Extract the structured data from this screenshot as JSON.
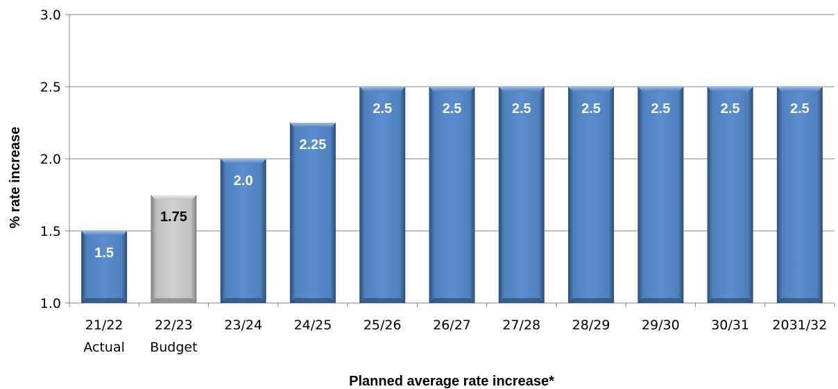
{
  "chart_data": {
    "type": "bar",
    "title": "",
    "xlabel": "Planned average rate increase*",
    "ylabel": "% rate increase",
    "ylim": [
      1.0,
      3.0
    ],
    "yticks": [
      "1.0",
      "1.5",
      "2.0",
      "2.5",
      "3.0"
    ],
    "grid": true,
    "categories": [
      [
        "21/22",
        "Actual"
      ],
      [
        "22/23",
        "Budget"
      ],
      [
        "23/24"
      ],
      [
        "24/25"
      ],
      [
        "25/26"
      ],
      [
        "26/27"
      ],
      [
        "27/28"
      ],
      [
        "28/29"
      ],
      [
        "29/30"
      ],
      [
        "30/31"
      ],
      [
        "2031/32"
      ]
    ],
    "values": [
      1.5,
      1.75,
      2.0,
      2.25,
      2.5,
      2.5,
      2.5,
      2.5,
      2.5,
      2.5,
      2.5
    ],
    "data_labels": [
      "1.5",
      "1.75",
      "2.0",
      "2.25",
      "2.5",
      "2.5",
      "2.5",
      "2.5",
      "2.5",
      "2.5",
      "2.5"
    ],
    "bar_styles": [
      "blue",
      "grey",
      "blue",
      "blue",
      "blue",
      "blue",
      "blue",
      "blue",
      "blue",
      "blue",
      "blue"
    ]
  },
  "colors": {
    "blue_bar": "#4f81bd",
    "blue_bar_dark": "#2c4d75",
    "blue_bar_light": "#7aa2d6",
    "grey_bar": "#bfbfbf",
    "grey_bar_dark": "#7f7f7f",
    "grey_bar_light": "#e6e6e6",
    "gridline": "#868686",
    "label_on_blue": "#ffffff",
    "label_on_grey": "#000000"
  }
}
